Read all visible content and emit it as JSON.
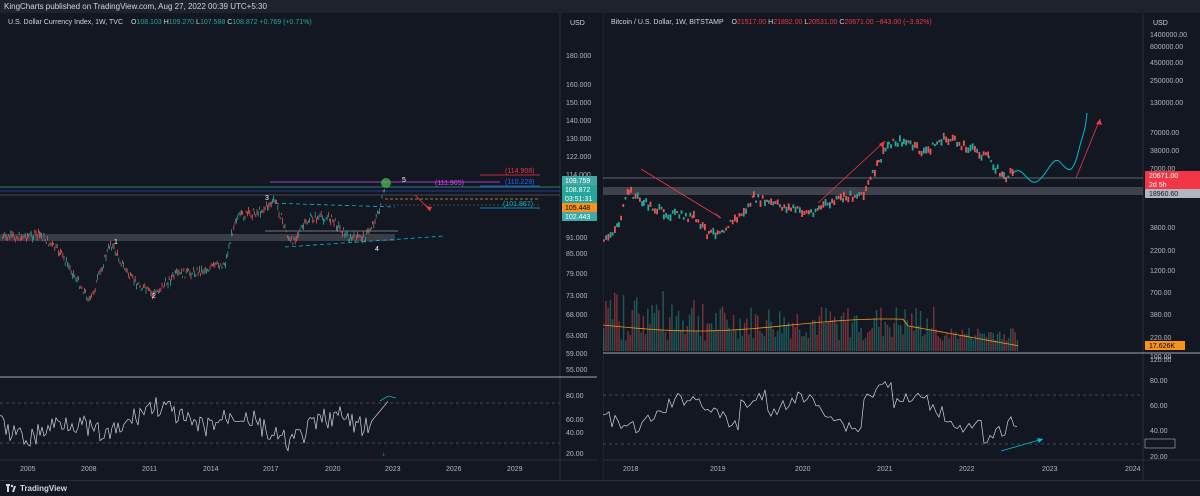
{
  "topbar": {
    "text": "KingCharts published on TradingView.com, Aug 27, 2022 00:39 UTC+5:30"
  },
  "left_chart": {
    "title": "U.S. Dollar Currency Index, 1W, TVC",
    "ohlc": {
      "o_label": "O",
      "o": "108.103",
      "h_label": "H",
      "h": "109.270",
      "l_label": "L",
      "l": "107.588",
      "c_label": "C",
      "c": "108.872",
      "chg": "+0.769 (+0.71%)"
    },
    "currency": "USD",
    "price_ticks": [
      "180.000",
      "160.000",
      "150.000",
      "140.000",
      "130.000",
      "122.000",
      "114.000",
      "91.000",
      "85.000",
      "79.000",
      "73.000",
      "68.000",
      "63.000",
      "59.000",
      "55.000"
    ],
    "price_badges": [
      {
        "text": "109.759",
        "color": "#3fa9a7"
      },
      {
        "text": "108.872",
        "color": "#26a69a"
      },
      {
        "text": "03:51:31",
        "color": "#26a69a"
      },
      {
        "text": "105.448",
        "color": "#f7931a"
      },
      {
        "text": "102.443",
        "color": "#3fa9a7"
      }
    ],
    "level_labels": [
      {
        "text": "(114.908)",
        "color": "#f23645"
      },
      {
        "text": "(111.965)",
        "color": "#e040fb"
      },
      {
        "text": "(110.229)",
        "color": "#2962ff"
      },
      {
        "text": "(101.867)",
        "color": "#00bcd4"
      }
    ],
    "wave_labels": [
      "1",
      "2",
      "3",
      "4",
      "5"
    ],
    "rsi_ticks": [
      "80.00",
      "60.00",
      "40.00",
      "20.00"
    ],
    "year_ticks": [
      "2005",
      "2008",
      "2011",
      "2014",
      "2017",
      "2020",
      "2023",
      "2026",
      "2029"
    ]
  },
  "right_chart": {
    "title": "Bitcoin / U.S. Dollar, 1W, BITSTAMP",
    "ohlc": {
      "o_label": "O",
      "o": "21517.00",
      "h_label": "H",
      "h": "21892.00",
      "l_label": "L",
      "l": "20531.00",
      "c_label": "C",
      "c": "20671.00",
      "chg": "−843.00 (−3.92%)"
    },
    "currency": "USD",
    "price_ticks": [
      "1400000.00",
      "800000.00",
      "450000.00",
      "250000.00",
      "130000.00",
      "70000.00",
      "38000.00",
      "7000.00",
      "3800.00",
      "2200.00",
      "1200.00",
      "700.00",
      "380.00",
      "220.00",
      "120.00"
    ],
    "price_badges": [
      {
        "text": "20671.00",
        "color": "#f23645"
      },
      {
        "text": "2d 5h",
        "color": "#f23645"
      },
      {
        "text": "18960.60",
        "color": "#b2b5be"
      }
    ],
    "volume_badge": "17.626K",
    "rsi_ticks": [
      "100.00",
      "80.00",
      "60.00",
      "40.00",
      "32.58",
      "20.00"
    ],
    "year_ticks": [
      "2018",
      "2019",
      "2020",
      "2021",
      "2022",
      "2023",
      "2024"
    ]
  },
  "footer": {
    "brand": "TradingView"
  }
}
